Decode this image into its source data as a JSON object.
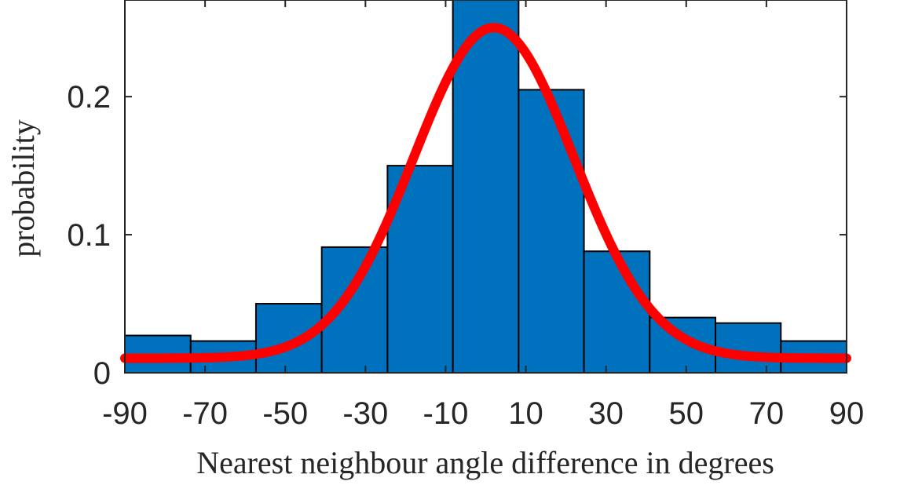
{
  "chart_data": {
    "type": "bar",
    "title": "",
    "xlabel": "Nearest neighbour angle difference in degrees",
    "ylabel": "probability",
    "xlim": [
      -90,
      90
    ],
    "ylim": [
      0,
      0.27
    ],
    "xticks": [
      -90,
      -70,
      -50,
      -30,
      -10,
      10,
      30,
      50,
      70,
      90
    ],
    "xtick_labels": [
      "-90",
      "-70",
      "-50",
      "-30",
      "-10",
      "10",
      "30",
      "50",
      "70",
      "90"
    ],
    "yticks": [
      0,
      0.1,
      0.2
    ],
    "ytick_labels": [
      "0",
      "0.1",
      "0.2"
    ],
    "bin_edges": [
      -90,
      -73.6,
      -57.3,
      -40.9,
      -24.5,
      -8.2,
      8.2,
      24.5,
      40.9,
      57.3,
      73.6,
      90
    ],
    "values": [
      0.027,
      0.023,
      0.05,
      0.091,
      0.15,
      0.27,
      0.205,
      0.088,
      0.04,
      0.036,
      0.023
    ],
    "bar_color": "#0072BD",
    "fit_curve": {
      "type": "gaussian",
      "mean": 2,
      "sigma": 20,
      "peak": 0.25,
      "baseline": 0.0105,
      "color": "#FF0000"
    },
    "grid": false
  }
}
